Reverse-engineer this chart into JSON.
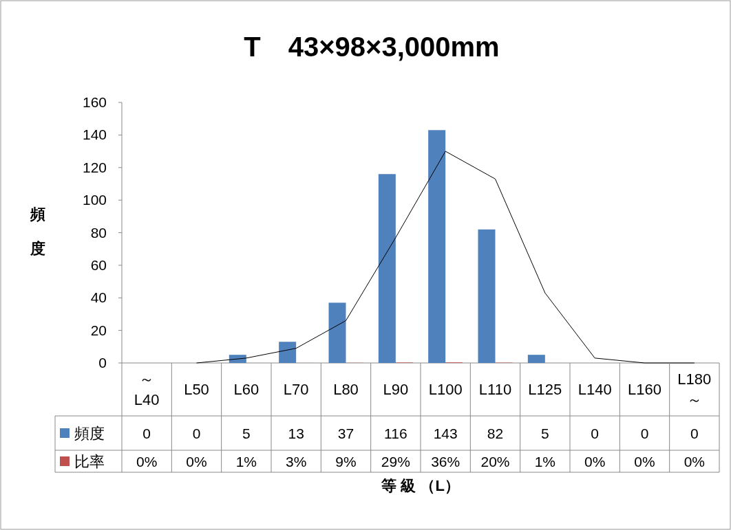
{
  "chart_data": {
    "type": "bar",
    "title": "T　43×98×3,000mm",
    "xlabel": "等 級 （L）",
    "ylabel": "頻度",
    "categories": [
      "～\nL40",
      "L50",
      "L60",
      "L70",
      "L80",
      "L90",
      "L100",
      "L110",
      "L125",
      "L140",
      "L160",
      "L180\n～"
    ],
    "series": [
      {
        "name": "頻度",
        "color": "#4f81bd",
        "values": [
          0,
          0,
          5,
          13,
          37,
          116,
          143,
          82,
          5,
          0,
          0,
          0
        ],
        "value_labels": [
          "0",
          "0",
          "5",
          "13",
          "37",
          "116",
          "143",
          "82",
          "5",
          "0",
          "0",
          "0"
        ]
      },
      {
        "name": "比率",
        "color": "#c0504d",
        "values": [
          0,
          0,
          0.01,
          0.03,
          0.09,
          0.29,
          0.36,
          0.2,
          0.01,
          0,
          0,
          0
        ],
        "value_labels": [
          "0%",
          "0%",
          "1%",
          "3%",
          "9%",
          "29%",
          "36%",
          "20%",
          "1%",
          "0%",
          "0%",
          "0%"
        ]
      },
      {
        "type": "line",
        "color": "#000000",
        "values": [
          null,
          0,
          3,
          9,
          26,
          77,
          130,
          113,
          43,
          3,
          0,
          0
        ]
      }
    ],
    "ylim": [
      0,
      160
    ],
    "yticks": [
      0,
      20,
      40,
      60,
      80,
      100,
      120,
      140,
      160
    ],
    "grid": false,
    "legend": "bottom"
  }
}
